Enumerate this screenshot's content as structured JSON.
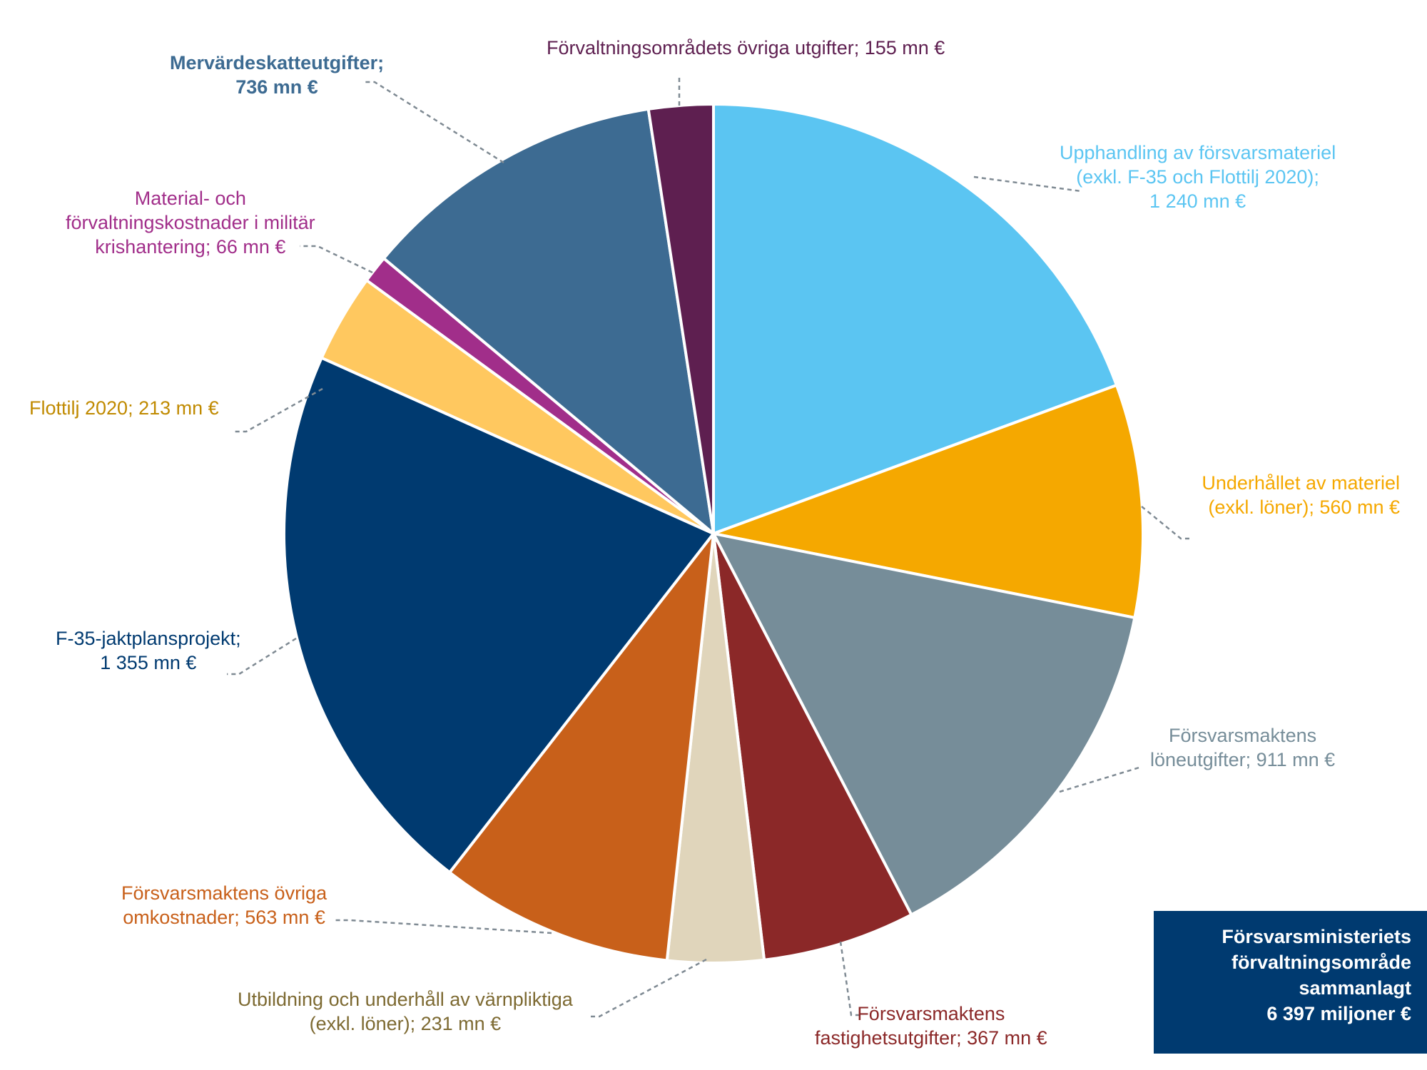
{
  "chart_data": {
    "type": "pie",
    "unit": "mn €",
    "total_box": {
      "lines": [
        "Försvarsministeriets",
        "förvaltningsområde",
        "sammanlagt",
        "6 397 miljoner €"
      ],
      "background": "#003a70"
    },
    "slices": [
      {
        "name": "Upphandling av försvarsmateriel (exkl. F-35 och Flottilj 2020)",
        "value": 1240,
        "color": "#5bc5f2",
        "label_color": "#5bc5f2",
        "label_lines": [
          "Upphandling av försvarsmateriel",
          "(exkl. F-35 och Flottilj 2020);",
          "1 240 mn €"
        ]
      },
      {
        "name": "Underhållet av materiel (exkl. löner)",
        "value": 560,
        "color": "#f5a800",
        "label_color": "#f5a800",
        "label_lines": [
          "Underhållet av materiel",
          "(exkl. löner); 560 mn €"
        ]
      },
      {
        "name": "Försvarsmaktens löneutgifter",
        "value": 911,
        "color": "#768d99",
        "label_color": "#768d99",
        "label_lines": [
          "Försvarsmaktens",
          "löneutgifter; 911 mn €"
        ]
      },
      {
        "name": "Försvarsmaktens fastighetsutgifter",
        "value": 367,
        "color": "#8b2828",
        "label_color": "#8b2828",
        "label_lines": [
          "Försvarsmaktens",
          "fastighetsutgifter; 367 mn €"
        ]
      },
      {
        "name": "Utbildning och underhåll av värnpliktiga (exkl. löner)",
        "value": 231,
        "color": "#e0d5bb",
        "label_color": "#7d6a32",
        "label_lines": [
          "Utbildning och underhåll av värnpliktiga",
          "(exkl. löner); 231 mn €"
        ]
      },
      {
        "name": "Försvarsmaktens övriga omkostnader",
        "value": 563,
        "color": "#c8601a",
        "label_color": "#c8601a",
        "label_lines": [
          "Försvarsmaktens övriga",
          "omkostnader; 563 mn €"
        ]
      },
      {
        "name": "F-35-jaktplansprojekt",
        "value": 1355,
        "color": "#003a70",
        "label_color": "#003a70",
        "label_lines": [
          "F-35-jaktplansprojekt;",
          "1 355 mn €"
        ]
      },
      {
        "name": "Flottilj 2020",
        "value": 213,
        "color": "#ffc85f",
        "label_color": "#c08a00",
        "label_lines": [
          "Flottilj 2020; 213 mn €"
        ]
      },
      {
        "name": "Material- och förvaltningskostnader i militär krishantering",
        "value": 66,
        "color": "#a12e8a",
        "label_color": "#a12e8a",
        "label_lines": [
          "Material-  och",
          "förvaltningskostnader i militär",
          "krishantering; 66 mn €"
        ]
      },
      {
        "name": "Mervärdeskatteutgifter",
        "value": 736,
        "color": "#3d6b92",
        "label_color": "#3d6b92",
        "label_lines": [
          "Mervärdeskatteutgifter;",
          "736 mn €"
        ]
      },
      {
        "name": "Förvaltningsområdets övriga utgifter",
        "value": 155,
        "color": "#5e1f50",
        "label_color": "#5e1f50",
        "label_lines": [
          "Förvaltningsområdets övriga utgifter; 155 mn €"
        ]
      }
    ]
  }
}
